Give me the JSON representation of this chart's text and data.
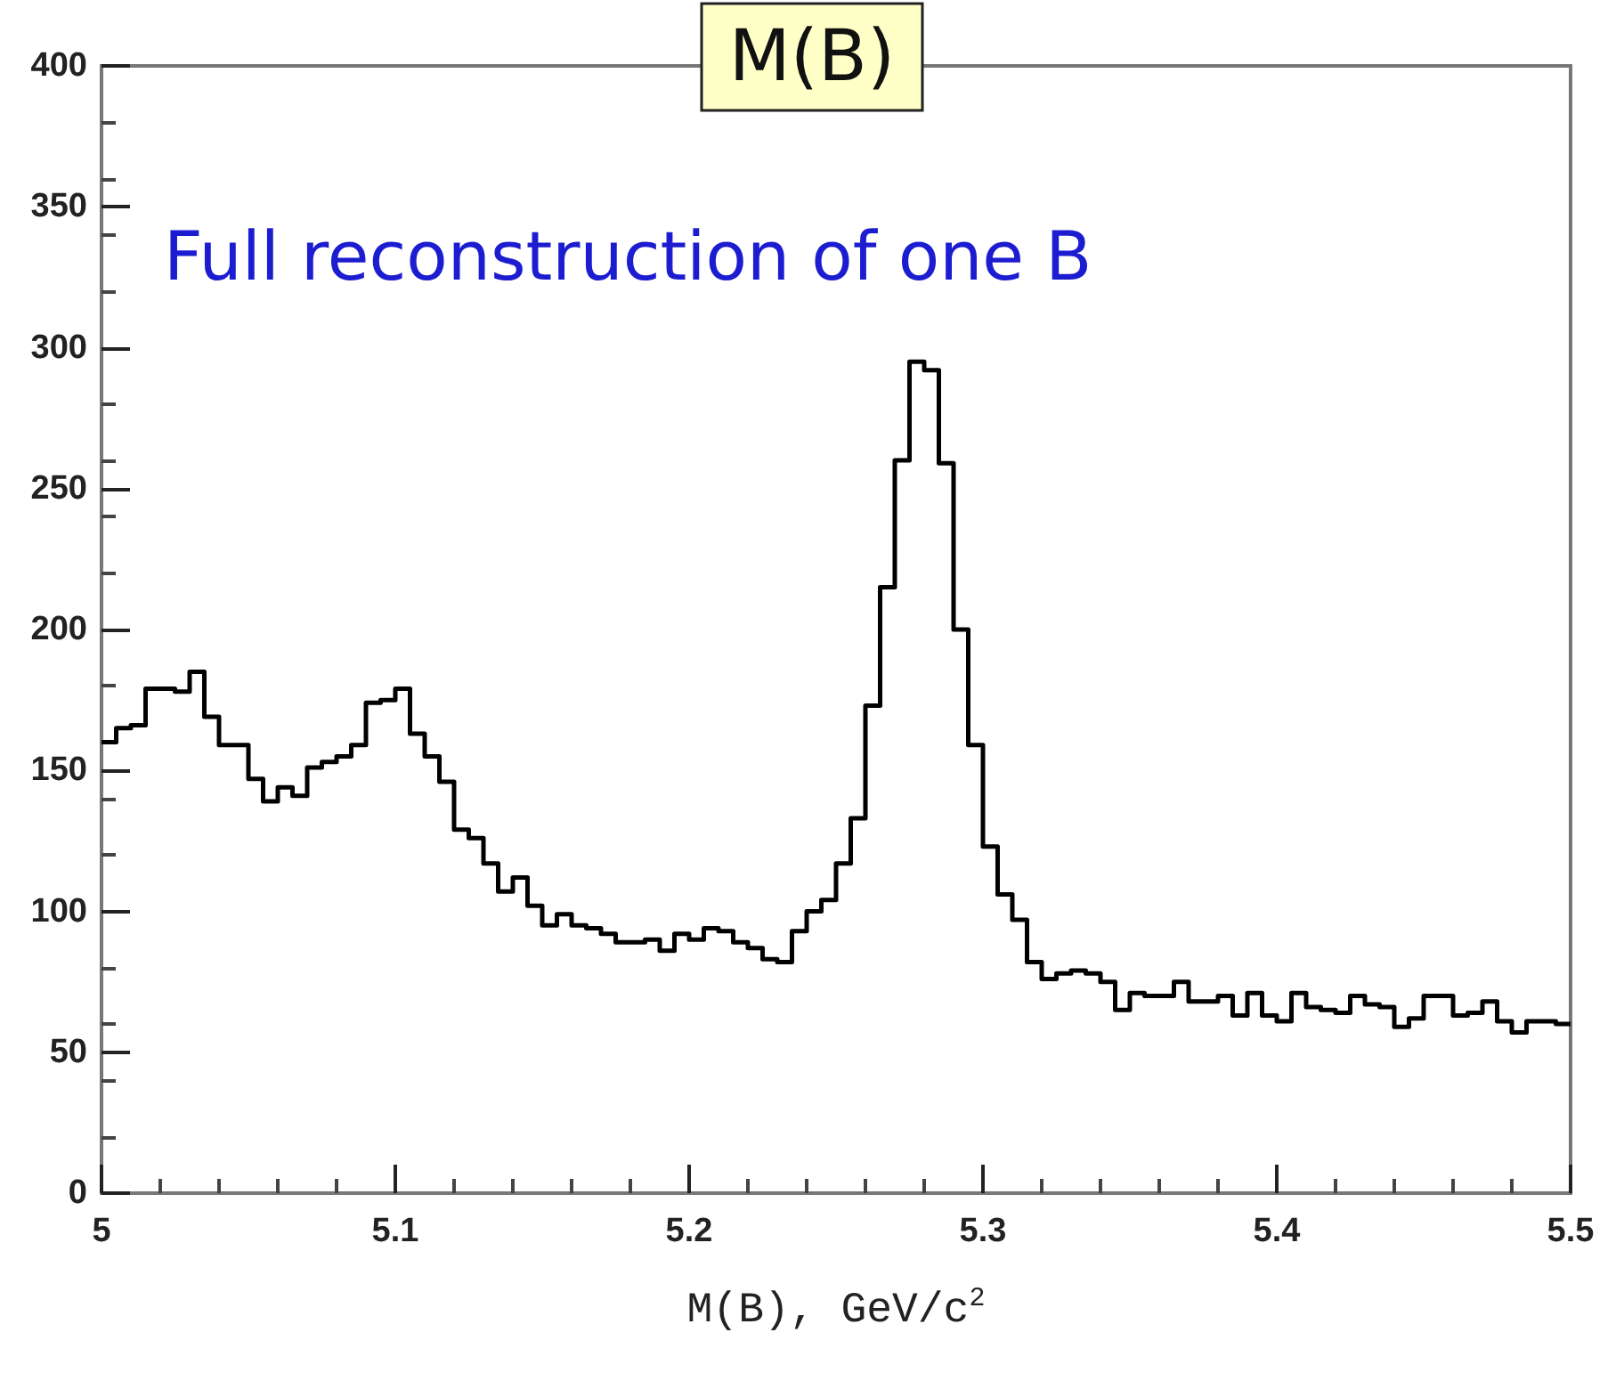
{
  "chart_data": {
    "type": "histogram",
    "title": "M(B)",
    "xlabel": "M(B), GeV/c$^{2}$",
    "annotations": [
      "Full reconstruction of one B"
    ],
    "bins": [
      5,
      5.005,
      5.01,
      5.015,
      5.02,
      5.025,
      5.03,
      5.035,
      5.04,
      5.045,
      5.05,
      5.055,
      5.06,
      5.065,
      5.07,
      5.075,
      5.08,
      5.085,
      5.09,
      5.095,
      5.1,
      5.105,
      5.11,
      5.115,
      5.12,
      5.125,
      5.13,
      5.135,
      5.14,
      5.145,
      5.15,
      5.155,
      5.16,
      5.165,
      5.17,
      5.175,
      5.18,
      5.185,
      5.19,
      5.195,
      5.2,
      5.205,
      5.21,
      5.215,
      5.22,
      5.225,
      5.23,
      5.235,
      5.24,
      5.245,
      5.25,
      5.255,
      5.26,
      5.265,
      5.27,
      5.275,
      5.28,
      5.285,
      5.29,
      5.295,
      5.3,
      5.305,
      5.31,
      5.315,
      5.32,
      5.325,
      5.33,
      5.335,
      5.34,
      5.345,
      5.35,
      5.355,
      5.36,
      5.365,
      5.37,
      5.375,
      5.38,
      5.385,
      5.39,
      5.395,
      5.4,
      5.405,
      5.41,
      5.415,
      5.42,
      5.425,
      5.43,
      5.435,
      5.44,
      5.445,
      5.45,
      5.455,
      5.46,
      5.465,
      5.47,
      5.475,
      5.48,
      5.485,
      5.49,
      5.495,
      5.5
    ],
    "values": [
      160,
      165,
      166,
      179,
      179,
      178,
      185,
      169,
      159,
      159,
      147,
      139,
      144,
      141,
      151,
      153,
      155,
      159,
      174,
      175,
      179,
      163,
      155,
      146,
      129,
      126,
      117,
      107,
      112,
      102,
      95,
      99,
      95,
      94,
      92,
      89,
      89,
      90,
      86,
      92,
      90,
      94,
      93,
      89,
      87,
      83,
      82,
      93,
      100,
      104,
      117,
      133,
      173,
      215,
      260,
      295,
      292,
      259,
      200,
      159,
      123,
      106,
      97,
      82,
      76,
      78,
      79,
      78,
      75,
      65,
      71,
      70,
      70,
      75,
      68,
      68,
      70,
      63,
      71,
      63,
      61,
      71,
      66,
      65,
      64,
      70,
      67,
      66,
      59,
      62,
      70,
      70,
      63,
      64,
      68,
      61,
      57,
      61,
      61,
      60
    ],
    "color": "#000000",
    "xlim": [
      5,
      5.5
    ],
    "xticks": [
      5,
      5.1,
      5.2,
      5.3,
      5.4,
      5.5
    ],
    "ylim": [
      0,
      400
    ],
    "yticks": [
      0,
      50,
      100,
      150,
      200,
      250,
      300,
      350,
      400
    ]
  }
}
